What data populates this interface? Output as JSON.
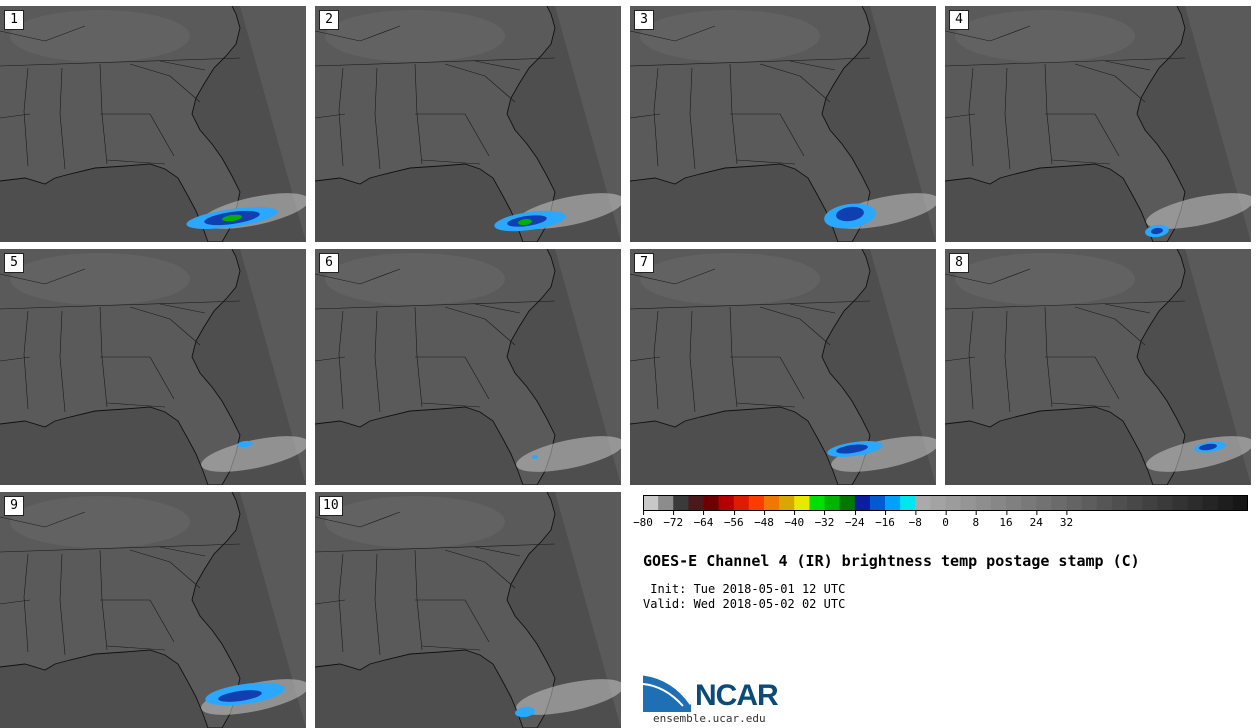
{
  "panels": [
    {
      "label": "1"
    },
    {
      "label": "2"
    },
    {
      "label": "3"
    },
    {
      "label": "4"
    },
    {
      "label": "5"
    },
    {
      "label": "6"
    },
    {
      "label": "7"
    },
    {
      "label": "8"
    },
    {
      "label": "9"
    },
    {
      "label": "10"
    }
  ],
  "colorbar": {
    "tick_labels": [
      "−80",
      "−72",
      "−64",
      "−56",
      "−48",
      "−40",
      "−32",
      "−24",
      "−16",
      "−8",
      "0",
      "8",
      "16",
      "24",
      "32"
    ],
    "colors": [
      "#c8c8c8",
      "#8c8c8c",
      "#3a3a3a",
      "#4a1a1a",
      "#6e0000",
      "#b40000",
      "#e01c00",
      "#ff3c00",
      "#f07800",
      "#d8a800",
      "#e8e800",
      "#00e000",
      "#00b400",
      "#007800",
      "#0a1ea0",
      "#005ad2",
      "#00a0ff",
      "#00e6f0",
      "#aaaaaa",
      "#a3a3a3",
      "#9c9c9c",
      "#959595",
      "#8e8e8e",
      "#878787",
      "#808080",
      "#797979",
      "#727272",
      "#6b6b6b",
      "#646464",
      "#5d5d5d",
      "#565656",
      "#4f4f4f",
      "#484848",
      "#414141",
      "#3a3a3a",
      "#333333",
      "#2c2c2c",
      "#252525",
      "#1e1e1e",
      "#171717"
    ]
  },
  "title": "GOES-E Channel 4 (IR) brightness temp postage stamp (C)",
  "init_line": " Init: Tue 2018-05-01 12 UTC",
  "valid_line": "Valid: Wed 2018-05-02 02 UTC",
  "logo": {
    "text": "NCAR",
    "url": "ensemble.ucar.edu"
  }
}
